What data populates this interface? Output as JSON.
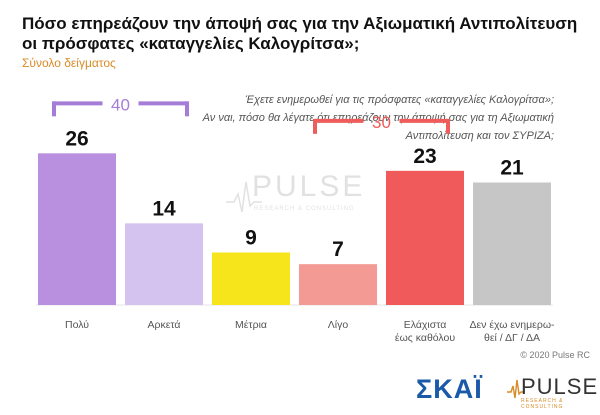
{
  "header": {
    "title": "Πόσο επηρεάζουν την άποψή σας για την Αξιωματική Αντιπολίτευση οι πρόσφατες «καταγγελίες Καλογρίτσα»;",
    "subtitle": "Σύνολο δείγματος"
  },
  "question_lines": [
    "Έχετε ενημερωθεί για τις πρόσφατες «καταγγελίες Καλογρίτσα»;",
    "Αν ναι, πόσο θα λέγατε ότι επηρεάζουν την άποψή σας για τη Αξιωματική",
    "Αντιπολίτευση και τον ΣΥΡΙΖΑ;"
  ],
  "chart_data": {
    "type": "bar",
    "categories": [
      [
        "Πολύ"
      ],
      [
        "Αρκετά"
      ],
      [
        "Μέτρια"
      ],
      [
        "Λίγο"
      ],
      [
        "Ελάχιστα",
        "έως καθόλου"
      ],
      [
        "Δεν έχω ενημερω-",
        "θεί / ΔΓ / ΔΑ"
      ]
    ],
    "values": [
      26,
      14,
      9,
      7,
      23,
      21
    ],
    "colors": [
      "#b98fe0",
      "#d5c3ef",
      "#f6e51a",
      "#f49a95",
      "#f05a5a",
      "#c6c6c6"
    ],
    "ylim": [
      0,
      30
    ],
    "grid": false,
    "brackets": [
      {
        "label": "40",
        "from": 0,
        "to": 1,
        "color": "#a67dd6"
      },
      {
        "label": "30",
        "from": 3,
        "to": 4,
        "color": "#ef5c5c"
      }
    ]
  },
  "watermark": {
    "word": "PULSE",
    "sub": "RESEARCH & CONSULTING"
  },
  "copyright": "© 2020 Pulse RC",
  "logos": {
    "skai": "ΣΚΑΪ",
    "pulse": "PULSE",
    "pulse_sub": "RESEARCH & CONSULTING"
  }
}
